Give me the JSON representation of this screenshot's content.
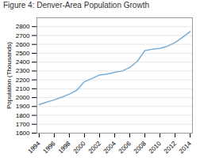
{
  "chart_data": {
    "type": "line",
    "title": "Figure 4: Denver-Area Population Growth",
    "ylabel": "Population (Thousands)",
    "x": [
      1994,
      1995,
      1996,
      1997,
      1998,
      1999,
      2000,
      2001,
      2002,
      2003,
      2004,
      2005,
      2006,
      2007,
      2008,
      2009,
      2010,
      2011,
      2012,
      2013,
      2014
    ],
    "values": [
      1920,
      1950,
      1975,
      2005,
      2040,
      2085,
      2180,
      2215,
      2255,
      2265,
      2285,
      2300,
      2340,
      2410,
      2530,
      2545,
      2555,
      2580,
      2620,
      2680,
      2745
    ],
    "color": "#7aaed6",
    "xlim": [
      1993.7,
      2014.3
    ],
    "xticks": [
      1994,
      1996,
      1998,
      2000,
      2002,
      2004,
      2006,
      2008,
      2010,
      2012,
      2014
    ],
    "ylim": [
      1600,
      2900
    ],
    "yticks": [
      1600,
      1700,
      1800,
      1900,
      2000,
      2100,
      2200,
      2300,
      2400,
      2500,
      2600,
      2700,
      2800
    ],
    "grid": true
  }
}
